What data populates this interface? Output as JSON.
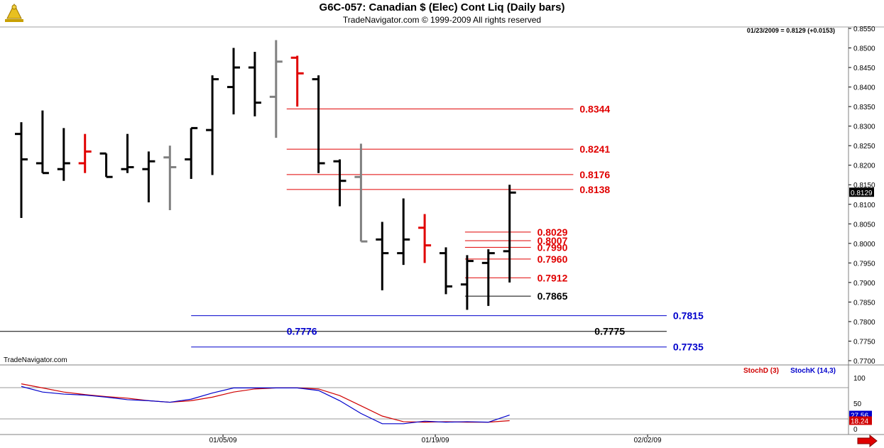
{
  "header": {
    "title": "G6C-057:  Canadian $ (Elec) Cont Liq  (Daily bars)",
    "subtitle": "TradeNavigator.com © 1999-2009 All rights reserved",
    "last_quote": "01/23/2009 = 0.8129 (+0.0153)",
    "watermark": "TradeNavigator.com",
    "brand_color": "#c8a000"
  },
  "chart_data": [
    {
      "type": "ohlc",
      "title": "G6C-057:  Canadian $ (Elec) Cont Liq  (Daily bars)",
      "y_ticks": [
        "0.8550",
        "0.8500",
        "0.8450",
        "0.8400",
        "0.8350",
        "0.8300",
        "0.8250",
        "0.8200",
        "0.8150",
        "0.8100",
        "0.8050",
        "0.8000",
        "0.7950",
        "0.7900",
        "0.7850",
        "0.7800",
        "0.7750",
        "0.7700"
      ],
      "ylim": [
        0.77,
        0.855
      ],
      "last_price_label": "0.8129",
      "x_ticks": [
        {
          "label": "01/05/09",
          "bar": 9.5
        },
        {
          "label": "01/19/09",
          "bar": 19.5
        },
        {
          "label": "02/02/09",
          "bar": 29.5
        }
      ],
      "bars": [
        {
          "o": 0.828,
          "h": 0.831,
          "l": 0.8065,
          "c": 0.8215,
          "color": "black"
        },
        {
          "o": 0.8205,
          "h": 0.834,
          "l": 0.818,
          "c": 0.818,
          "color": "black"
        },
        {
          "o": 0.819,
          "h": 0.8295,
          "l": 0.816,
          "c": 0.8205,
          "color": "black"
        },
        {
          "o": 0.8205,
          "h": 0.828,
          "l": 0.818,
          "c": 0.8235,
          "color": "red"
        },
        {
          "o": 0.823,
          "h": 0.823,
          "l": 0.817,
          "c": 0.817,
          "color": "black"
        },
        {
          "o": 0.819,
          "h": 0.828,
          "l": 0.818,
          "c": 0.8195,
          "color": "black"
        },
        {
          "o": 0.819,
          "h": 0.8235,
          "l": 0.8105,
          "c": 0.821,
          "color": "black"
        },
        {
          "o": 0.822,
          "h": 0.825,
          "l": 0.8085,
          "c": 0.8195,
          "color": "gray"
        },
        {
          "o": 0.8215,
          "h": 0.8295,
          "l": 0.8165,
          "c": 0.8295,
          "color": "black"
        },
        {
          "o": 0.829,
          "h": 0.843,
          "l": 0.8175,
          "c": 0.842,
          "color": "black"
        },
        {
          "o": 0.84,
          "h": 0.85,
          "l": 0.833,
          "c": 0.845,
          "color": "black"
        },
        {
          "o": 0.845,
          "h": 0.849,
          "l": 0.8325,
          "c": 0.836,
          "color": "black"
        },
        {
          "o": 0.8375,
          "h": 0.852,
          "l": 0.827,
          "c": 0.8465,
          "color": "gray"
        },
        {
          "o": 0.8475,
          "h": 0.848,
          "l": 0.835,
          "c": 0.8435,
          "color": "red"
        },
        {
          "o": 0.842,
          "h": 0.843,
          "l": 0.818,
          "c": 0.8205,
          "color": "black"
        },
        {
          "o": 0.821,
          "h": 0.8215,
          "l": 0.8095,
          "c": 0.816,
          "color": "black"
        },
        {
          "o": 0.817,
          "h": 0.8255,
          "l": 0.8005,
          "c": 0.8005,
          "color": "gray"
        },
        {
          "o": 0.801,
          "h": 0.8055,
          "l": 0.788,
          "c": 0.7975,
          "color": "black"
        },
        {
          "o": 0.7975,
          "h": 0.8115,
          "l": 0.7945,
          "c": 0.801,
          "color": "black"
        },
        {
          "o": 0.804,
          "h": 0.8075,
          "l": 0.795,
          "c": 0.7995,
          "color": "red"
        },
        {
          "o": 0.7975,
          "h": 0.799,
          "l": 0.787,
          "c": 0.789,
          "color": "black"
        },
        {
          "o": 0.7895,
          "h": 0.797,
          "l": 0.783,
          "c": 0.7955,
          "color": "black"
        },
        {
          "o": 0.795,
          "h": 0.7985,
          "l": 0.784,
          "c": 0.7975,
          "color": "black"
        },
        {
          "o": 0.798,
          "h": 0.815,
          "l": 0.79,
          "c": 0.813,
          "color": "black"
        }
      ],
      "levels": [
        {
          "label": "0.8344",
          "value": 0.8344,
          "color": "#e00000",
          "x0": 12.5,
          "x1": 26.0,
          "text_x": 26.3
        },
        {
          "label": "0.8241",
          "value": 0.8241,
          "color": "#e00000",
          "x0": 12.5,
          "x1": 26.0,
          "text_x": 26.3
        },
        {
          "label": "0.8176",
          "value": 0.8176,
          "color": "#e00000",
          "x0": 12.5,
          "x1": 26.0,
          "text_x": 26.3
        },
        {
          "label": "0.8138",
          "value": 0.8138,
          "color": "#e00000",
          "x0": 12.5,
          "x1": 26.0,
          "text_x": 26.3
        },
        {
          "label": "0.8029",
          "value": 0.8029,
          "color": "#e00000",
          "x0": 20.9,
          "x1": 24.0,
          "text_x": 24.3
        },
        {
          "label": "0.8007",
          "value": 0.8007,
          "color": "#e00000",
          "x0": 20.9,
          "x1": 24.0,
          "text_x": 24.3
        },
        {
          "label": "0.7990",
          "value": 0.799,
          "color": "#e00000",
          "x0": 20.9,
          "x1": 24.0,
          "text_x": 24.3
        },
        {
          "label": "0.7960",
          "value": 0.796,
          "color": "#e00000",
          "x0": 20.9,
          "x1": 24.0,
          "text_x": 24.3
        },
        {
          "label": "0.7912",
          "value": 0.7912,
          "color": "#e00000",
          "x0": 20.9,
          "x1": 24.0,
          "text_x": 24.3
        },
        {
          "label": "0.7865",
          "value": 0.7865,
          "color": "#000000",
          "x0": 20.9,
          "x1": 24.0,
          "text_x": 24.3
        },
        {
          "label": "0.7815",
          "value": 0.7815,
          "color": "#0000cc",
          "x0": 8.0,
          "x1": 30.4,
          "text_x": 30.7
        },
        {
          "label": "0.7735",
          "value": 0.7735,
          "color": "#0000cc",
          "x0": 8.0,
          "x1": 30.4,
          "text_x": 30.7
        }
      ],
      "level_pair": {
        "value": 0.7775,
        "line_color": "#000000",
        "x0": -1.0,
        "x1": 30.4,
        "labels": [
          {
            "text": "0.7776",
            "color": "#0000cc",
            "text_x": 12.5
          },
          {
            "text": "0.7775",
            "color": "#000000",
            "text_x": 27.0
          }
        ]
      }
    },
    {
      "type": "line",
      "title": "StochD (3)  StochK (14,3)",
      "y_ticks": [
        "100",
        "50",
        "0"
      ],
      "ylim": [
        0,
        100
      ],
      "last_labels": [
        "27.56",
        "18.24"
      ],
      "series": [
        {
          "name": "StochD (3)",
          "color": "#d00000",
          "values": [
            88,
            80,
            72,
            67,
            63,
            60,
            55,
            52,
            55,
            62,
            72,
            78,
            80,
            80,
            78,
            65,
            45,
            25,
            14,
            13,
            14,
            13,
            13,
            16
          ]
        },
        {
          "name": "StochK (14,3)",
          "color": "#0000cc",
          "values": [
            83,
            72,
            68,
            66,
            62,
            57,
            55,
            52,
            58,
            70,
            80,
            80,
            80,
            80,
            75,
            55,
            30,
            10,
            10,
            15,
            13,
            14,
            13,
            27
          ]
        }
      ]
    }
  ]
}
